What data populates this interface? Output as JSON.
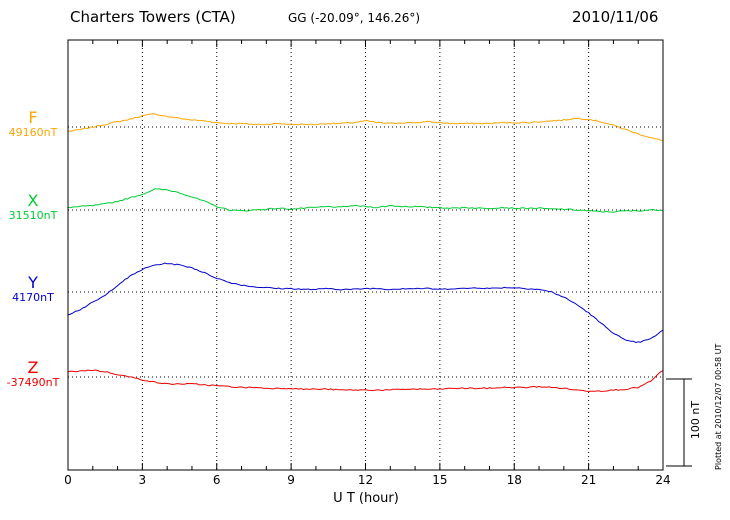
{
  "header": {
    "station": "Charters Towers (CTA)",
    "coords": "GG (-20.09°, 146.26°)",
    "date": "2010/11/06"
  },
  "axis": {
    "x_label": "U T (hour)",
    "x_ticks": [
      "0",
      "3",
      "6",
      "9",
      "12",
      "15",
      "18",
      "21",
      "24"
    ]
  },
  "scale_bar": {
    "label": "100 nT"
  },
  "footer_note": "Plotted at 2010/12/07 00:58 UT",
  "components": [
    {
      "id": "F",
      "label": "F",
      "baseline_label": "49160nT",
      "color": "#FFA500"
    },
    {
      "id": "X",
      "label": "X",
      "baseline_label": "31510nT",
      "color": "#00CC33"
    },
    {
      "id": "Y",
      "label": "Y",
      "baseline_label": "4170nT",
      "color": "#0000CC"
    },
    {
      "id": "Z",
      "label": "Z",
      "baseline_label": "-37490nT",
      "color": "#EE0000"
    }
  ],
  "chart_data": {
    "type": "line",
    "title": "Charters Towers (CTA) magnetogram, 2010/11/06",
    "xlabel": "U T (hour)",
    "x_range_hours": [
      0,
      24
    ],
    "x_step_hours": 0.5,
    "grid_hours": [
      0,
      3,
      6,
      9,
      12,
      15,
      18,
      21,
      24
    ],
    "scale_bar_nT": 100,
    "legend_position": "left-margin",
    "grid": "dotted-vertical-plus-baselines",
    "series": [
      {
        "name": "F",
        "baseline_nT": 49160,
        "color": "#FFA500",
        "offsets_nT": [
          -5,
          -3,
          0,
          3,
          6,
          9,
          13,
          15,
          12,
          10,
          8,
          7,
          5,
          4,
          4,
          3,
          3,
          4,
          3,
          3,
          3,
          4,
          4,
          5,
          7,
          5,
          4,
          5,
          5,
          6,
          5,
          4,
          4,
          4,
          4,
          5,
          5,
          5,
          6,
          7,
          8,
          10,
          9,
          6,
          2,
          -3,
          -8,
          -12,
          -16
        ]
      },
      {
        "name": "X",
        "baseline_nT": 31510,
        "color": "#00CC33",
        "offsets_nT": [
          3,
          4,
          5,
          7,
          10,
          14,
          18,
          24,
          23,
          20,
          15,
          10,
          4,
          0,
          -1,
          0,
          1,
          2,
          1,
          2,
          3,
          4,
          3,
          5,
          4,
          3,
          5,
          4,
          4,
          3,
          3,
          2,
          3,
          2,
          2,
          3,
          2,
          2,
          2,
          1,
          1,
          0,
          -1,
          -2,
          -2,
          -1,
          -1,
          0,
          0
        ]
      },
      {
        "name": "Y",
        "baseline_nT": 4170,
        "color": "#0000CC",
        "offsets_nT": [
          -26,
          -20,
          -12,
          -4,
          8,
          18,
          26,
          31,
          33,
          31,
          28,
          22,
          16,
          11,
          8,
          6,
          5,
          4,
          4,
          3,
          3,
          4,
          3,
          3,
          4,
          4,
          3,
          4,
          4,
          4,
          3,
          4,
          4,
          5,
          4,
          5,
          5,
          4,
          3,
          0,
          -6,
          -14,
          -24,
          -36,
          -47,
          -56,
          -58,
          -54,
          -44
        ]
      },
      {
        "name": "Z",
        "baseline_nT": -37490,
        "color": "#EE0000",
        "offsets_nT": [
          6,
          7,
          8,
          6,
          3,
          0,
          -3,
          -6,
          -8,
          -8,
          -8,
          -9,
          -10,
          -11,
          -12,
          -12,
          -13,
          -13,
          -13,
          -14,
          -14,
          -14,
          -15,
          -15,
          -15,
          -15,
          -15,
          -14,
          -14,
          -14,
          -14,
          -13,
          -13,
          -13,
          -13,
          -12,
          -12,
          -12,
          -11,
          -12,
          -13,
          -15,
          -16,
          -16,
          -15,
          -14,
          -12,
          -5,
          8
        ]
      }
    ]
  }
}
